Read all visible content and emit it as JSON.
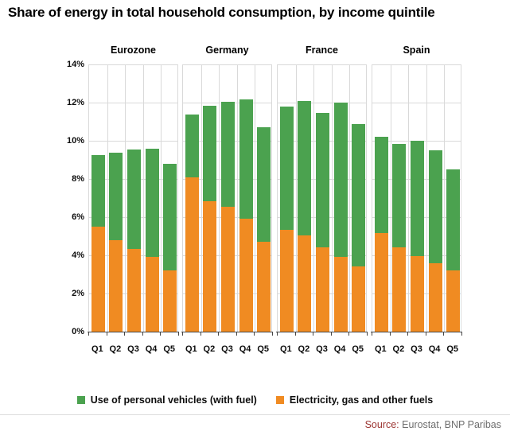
{
  "title": "Share of energy in total household consumption, by income quintile",
  "legend": [
    {
      "label": "Use of personal vehicles (with fuel)",
      "color": "#4ba24f"
    },
    {
      "label": "Electricity, gas and other fuels",
      "color": "#f08b22"
    }
  ],
  "source": {
    "label": "Source:",
    "text": "Eurostat, BNP Paribas"
  },
  "colors": {
    "green": "#4ba24f",
    "orange": "#f08b22",
    "gridline": "#d9d9d9",
    "axis": "#454545",
    "source_label": "#9c3532",
    "source_text": "#6e6e6e"
  },
  "chart_data": {
    "type": "bar",
    "stacked": true,
    "title": "Share of energy in total household consumption, by income quintile",
    "unit": "%",
    "ylim": [
      0,
      14
    ],
    "ytick_step": 2,
    "ytick_labels": [
      "14%",
      "12%",
      "10%",
      "8%",
      "6%",
      "4%",
      "2%",
      "0%"
    ],
    "grid": true,
    "legend_position": "bottom",
    "groups": [
      "Eurozone",
      "Germany",
      "France",
      "Spain"
    ],
    "categories": [
      "Q1",
      "Q2",
      "Q3",
      "Q4",
      "Q5"
    ],
    "series": [
      {
        "name": "Electricity, gas and other fuels",
        "color": "#f08b22",
        "stack_order": "bottom",
        "values": [
          [
            5.5,
            4.8,
            4.35,
            3.9,
            3.2
          ],
          [
            8.1,
            6.85,
            6.55,
            5.9,
            4.7
          ],
          [
            5.35,
            5.05,
            4.4,
            3.9,
            3.4
          ],
          [
            5.15,
            4.4,
            3.95,
            3.6,
            3.2
          ]
        ]
      },
      {
        "name": "Use of personal vehicles (with fuel)",
        "color": "#4ba24f",
        "stack_order": "top",
        "values": [
          [
            3.75,
            4.6,
            5.2,
            5.65,
            5.6
          ],
          [
            3.3,
            5.0,
            5.5,
            6.25,
            6.0
          ],
          [
            6.45,
            7.05,
            7.05,
            8.1,
            7.45
          ],
          [
            5.05,
            5.4,
            6.05,
            5.9,
            5.3
          ]
        ]
      }
    ],
    "totals": {
      "Eurozone": [
        9.25,
        9.4,
        9.55,
        9.55,
        8.8
      ],
      "Germany": [
        11.4,
        11.85,
        12.05,
        12.15,
        10.7
      ],
      "France": [
        11.8,
        12.1,
        11.45,
        12.0,
        10.85
      ],
      "Spain": [
        10.2,
        9.8,
        10.0,
        9.5,
        8.5
      ]
    }
  }
}
